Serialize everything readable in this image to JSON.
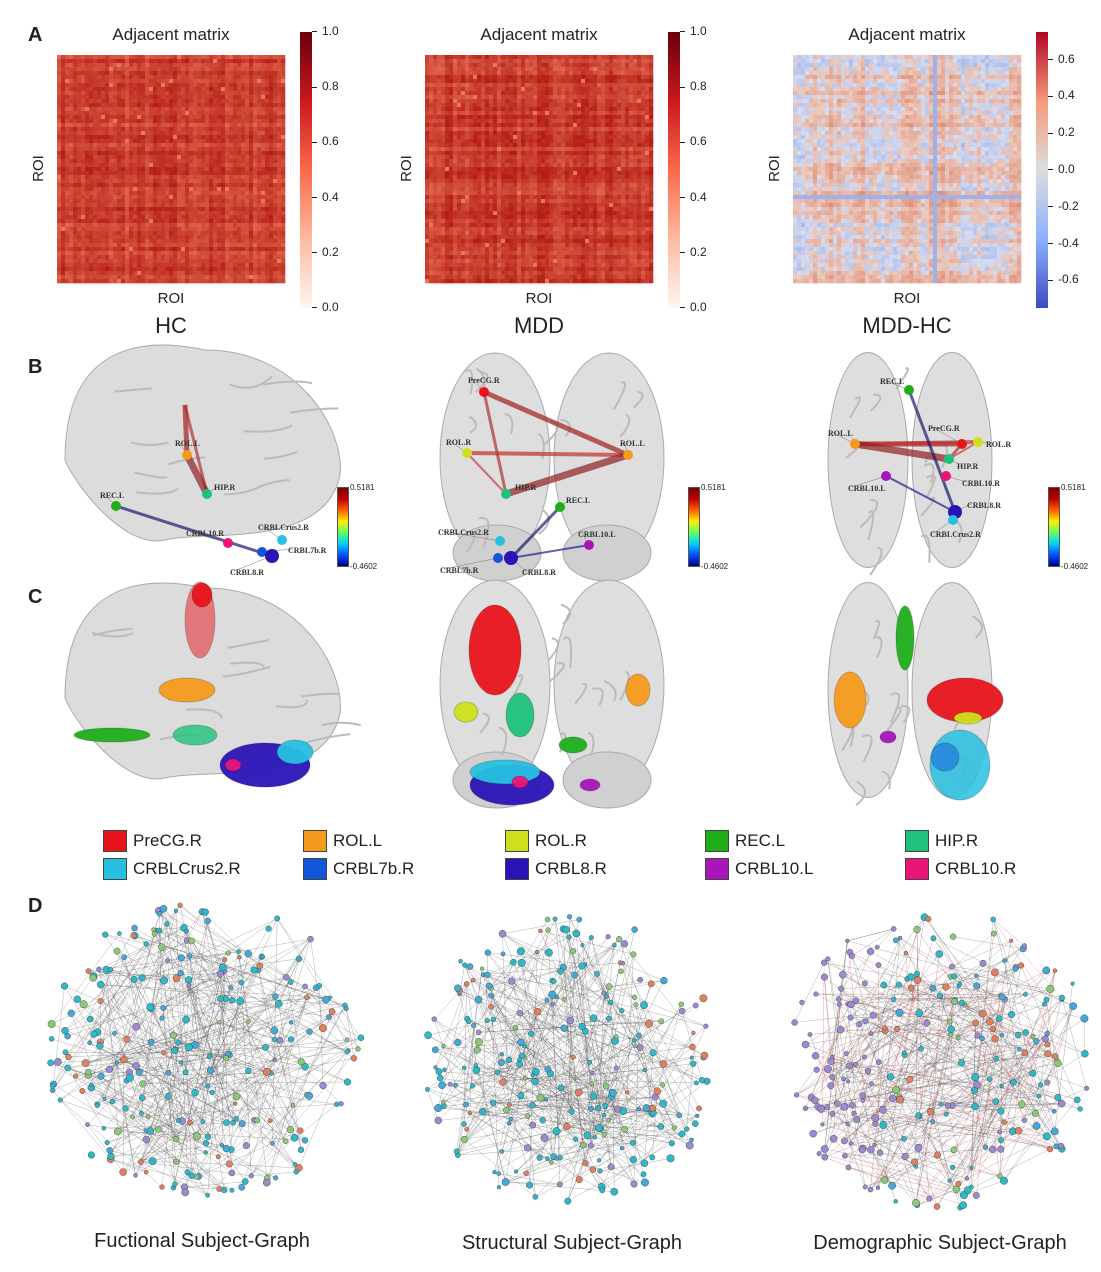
{
  "panels": {
    "a": "A",
    "b": "B",
    "c": "C",
    "d": "D"
  },
  "panel_a": [
    {
      "title": "Adjacent matrix",
      "xlabel": "ROI",
      "ylabel": "ROI",
      "group": "HC",
      "colorscale": "Reds",
      "cbar_ticks": [
        "1.0",
        "0.8",
        "0.6",
        "0.4",
        "0.2",
        "0.0"
      ],
      "vmin": 0,
      "vmax": 1
    },
    {
      "title": "Adjacent matrix",
      "xlabel": "ROI",
      "ylabel": "ROI",
      "group": "MDD",
      "colorscale": "Reds",
      "cbar_ticks": [
        "1.0",
        "0.8",
        "0.6",
        "0.4",
        "0.2",
        "0.0"
      ],
      "vmin": 0,
      "vmax": 1
    },
    {
      "title": "Adjacent matrix",
      "xlabel": "ROI",
      "ylabel": "ROI",
      "group": "MDD-HC",
      "colorscale": "coolwarm",
      "cbar_ticks": [
        "0.6",
        "0.4",
        "0.2",
        "0.0",
        "-0.2",
        "-0.4",
        "-0.6"
      ],
      "vmin": -0.75,
      "vmax": 0.75
    }
  ],
  "panel_b": {
    "colorbar_max": "0.5181",
    "colorbar_min": "-0.4602",
    "views": [
      {
        "view": "sagittal",
        "labels": [
          "ROL.L",
          "HIP.R",
          "REC.L",
          "CRBL10.R",
          "CRBLCrus2.R",
          "CRBL7b.R",
          "CRBL8.R"
        ]
      },
      {
        "view": "coronal",
        "labels": [
          "PreCG.R",
          "ROL.R",
          "ROL.L",
          "HIP.R",
          "REC.L",
          "CRBLCrus2.R",
          "CRBL7b.R",
          "CRBL8.R",
          "CRBL10.L"
        ]
      },
      {
        "view": "axial",
        "labels": [
          "REC.L",
          "ROL.L",
          "PreCG.R",
          "ROL.R",
          "HIP.R",
          "CRBL10.L",
          "CRBL10.R",
          "CRBL8.R",
          "CRBLCrus2.R"
        ]
      }
    ]
  },
  "legend": [
    {
      "label": "PreCG.R",
      "color": "#e8141b"
    },
    {
      "label": "ROL.L",
      "color": "#f59a1c"
    },
    {
      "label": "ROL.R",
      "color": "#cde01b"
    },
    {
      "label": "REC.L",
      "color": "#1fae1a"
    },
    {
      "label": "HIP.R",
      "color": "#1fc27a"
    },
    {
      "label": "CRBLCrus2.R",
      "color": "#27c0e0"
    },
    {
      "label": "CRBL7b.R",
      "color": "#1257d8"
    },
    {
      "label": "CRBL8.R",
      "color": "#2a14b8"
    },
    {
      "label": "CRBL10.L",
      "color": "#a815b8"
    },
    {
      "label": "CRBL10.R",
      "color": "#ea1577"
    }
  ],
  "panel_d": [
    {
      "caption": "Fuctional Subject-Graph"
    },
    {
      "caption": "Structural Subject-Graph"
    },
    {
      "caption": "Demographic Subject-Graph"
    }
  ]
}
